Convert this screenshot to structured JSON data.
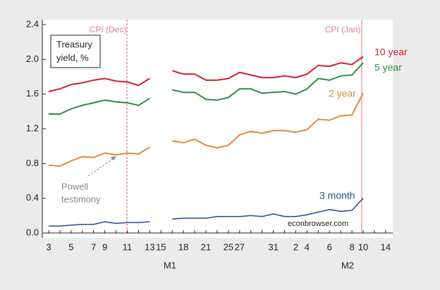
{
  "chart_data": {
    "type": "line",
    "annotations": {
      "box": [
        "Treasury",
        "yield, %"
      ],
      "cpi_dec": "CPI (Dec)",
      "cpi_jan": "CPI (Jan)",
      "powell": [
        "Powell",
        "testimony"
      ],
      "source": "econbrowser.com",
      "months": [
        "M1",
        "M2"
      ]
    },
    "categories": [
      "3",
      null,
      "5",
      null,
      "7",
      "9",
      null,
      "11",
      null,
      "13",
      "15",
      null,
      "18",
      null,
      "21",
      null,
      "25",
      "27",
      null,
      null,
      "31",
      null,
      "2",
      "4",
      null,
      "6",
      null,
      "8",
      "10",
      null,
      "14"
    ],
    "series": [
      {
        "name": "10 year",
        "color": "#d0202a",
        "values": [
          1.63,
          1.66,
          1.71,
          1.73,
          1.76,
          1.78,
          1.75,
          1.74,
          1.7,
          1.78,
          null,
          1.87,
          1.83,
          1.83,
          1.76,
          1.76,
          1.78,
          1.85,
          1.82,
          1.79,
          1.79,
          1.81,
          1.79,
          1.83,
          1.93,
          1.92,
          1.96,
          1.94,
          2.03,
          null,
          null
        ]
      },
      {
        "name": "5 year",
        "color": "#2e8b3e",
        "values": [
          1.37,
          1.37,
          1.43,
          1.47,
          1.5,
          1.53,
          1.51,
          1.5,
          1.47,
          1.55,
          null,
          1.65,
          1.62,
          1.62,
          1.54,
          1.53,
          1.56,
          1.66,
          1.66,
          1.61,
          1.62,
          1.63,
          1.6,
          1.66,
          1.78,
          1.76,
          1.81,
          1.82,
          1.96,
          null,
          null
        ]
      },
      {
        "name": "2 year",
        "color": "#e08a3c",
        "values": [
          0.78,
          0.77,
          0.83,
          0.88,
          0.87,
          0.92,
          0.9,
          0.92,
          0.91,
          0.99,
          null,
          1.06,
          1.04,
          1.08,
          1.01,
          0.98,
          1.01,
          1.13,
          1.17,
          1.15,
          1.18,
          1.18,
          1.16,
          1.19,
          1.31,
          1.3,
          1.35,
          1.36,
          1.61,
          null,
          null
        ]
      },
      {
        "name": "3 month",
        "color": "#1f4e8c",
        "values": [
          0.08,
          0.08,
          0.09,
          0.1,
          0.1,
          0.13,
          0.11,
          0.12,
          0.12,
          0.13,
          null,
          0.16,
          0.17,
          0.17,
          0.17,
          0.19,
          0.19,
          0.19,
          0.2,
          0.19,
          0.22,
          0.19,
          0.19,
          0.21,
          0.24,
          0.27,
          0.25,
          0.26,
          0.4,
          null,
          null
        ]
      }
    ],
    "ylim": [
      0,
      2.4
    ],
    "yticks": [
      {
        "value": 0,
        "label": "0.0"
      },
      0.4,
      0.8,
      1.2,
      1.6,
      {
        "value": 2,
        "label": "2.0"
      },
      2.4
    ]
  }
}
